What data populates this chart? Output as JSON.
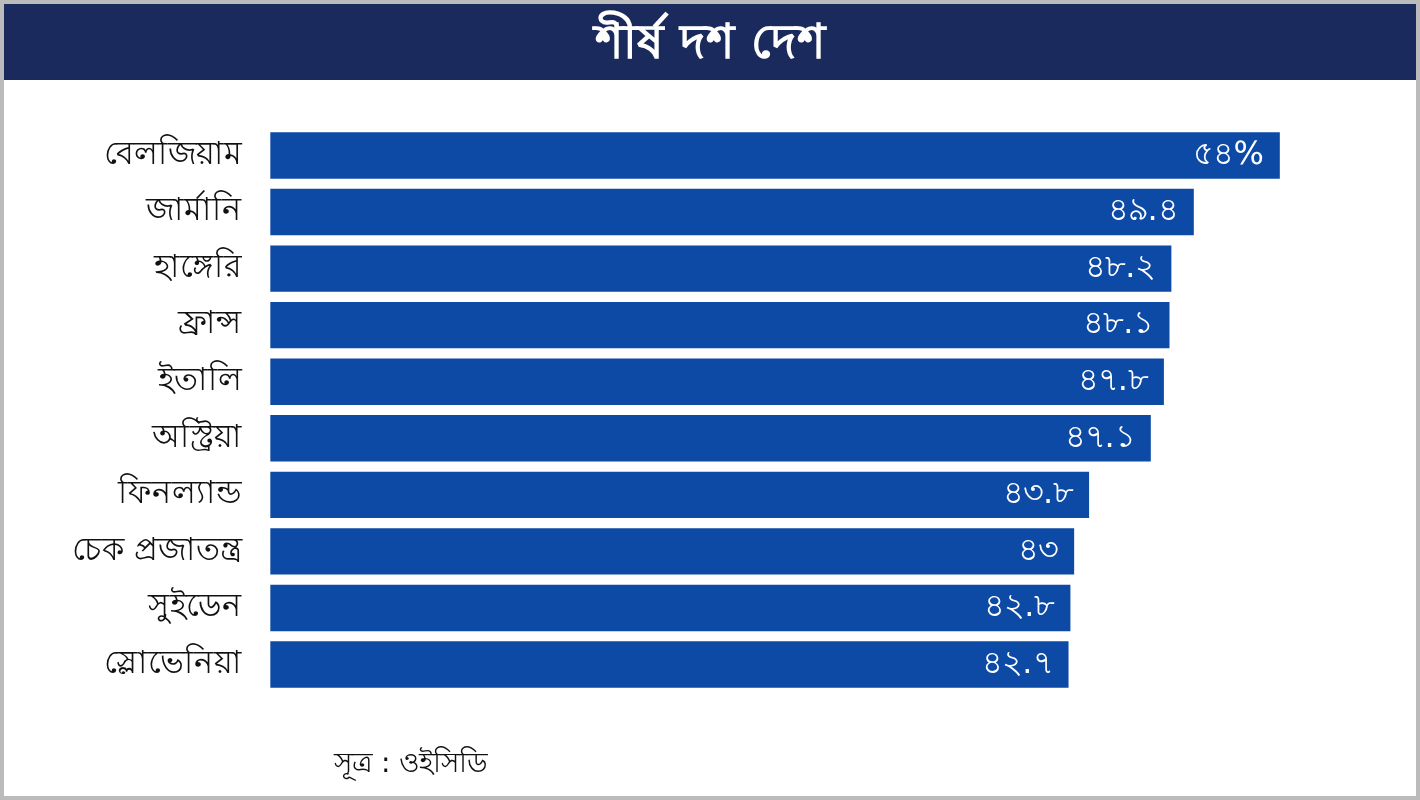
{
  "chart_data": {
    "type": "bar",
    "orientation": "horizontal",
    "title": "শীর্ষ দশ দেশ",
    "categories": [
      "বেলজিয়াম",
      "জার্মানি",
      "হাঙ্গেরি",
      "ফ্রান্স",
      "ইতালি",
      "অস্ট্রিয়া",
      "ফিনল্যান্ড",
      "চেক প্রজাতন্ত্র",
      "সুইডেন",
      "স্লোভেনিয়া"
    ],
    "values": [
      54,
      49.4,
      48.2,
      48.1,
      47.8,
      47.1,
      43.8,
      43,
      42.8,
      42.7
    ],
    "value_labels": [
      "৫৪%",
      "৪৯.৪",
      "৪৮.২",
      "৪৮.১",
      "৪৭.৮",
      "৪৭.১",
      "৪৩.৮",
      "৪৩",
      "৪২.৮",
      "৪২.৭"
    ],
    "color": "#0d4aa6",
    "tick_labels": "y",
    "grid": false,
    "legend": false,
    "annotations": [
      "সূত্র : ওইসিডি"
    ]
  }
}
